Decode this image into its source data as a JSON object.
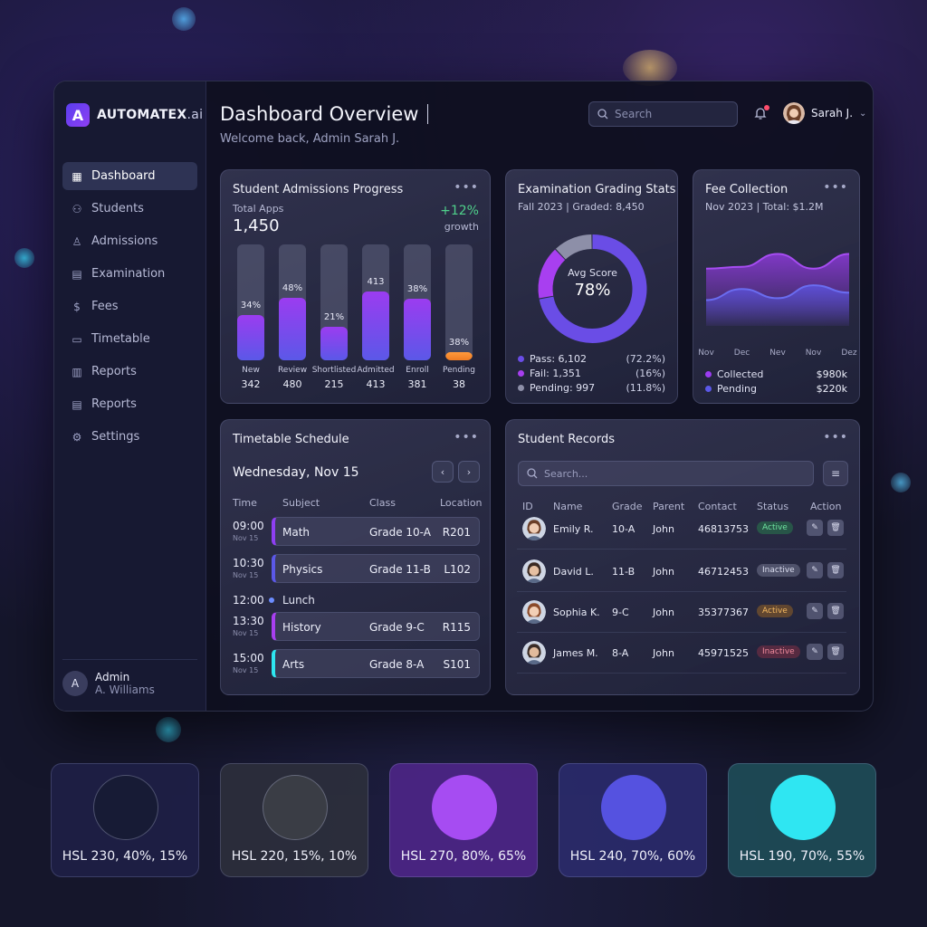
{
  "brand": {
    "name": "AUTOMATEX",
    "suffix": ".ai",
    "logo_letter": "A"
  },
  "sidebar": {
    "items": [
      {
        "label": "Dashboard",
        "icon": "grid-icon",
        "active": true
      },
      {
        "label": "Students",
        "icon": "users-icon"
      },
      {
        "label": "Admissions",
        "icon": "user-plus-icon"
      },
      {
        "label": "Examination",
        "icon": "document-icon"
      },
      {
        "label": "Fees",
        "icon": "dollar-icon"
      },
      {
        "label": "Timetable",
        "icon": "calendar-icon"
      },
      {
        "label": "Reports",
        "icon": "bar-chart-icon"
      },
      {
        "label": "Reports",
        "icon": "report-icon"
      },
      {
        "label": "Settings",
        "icon": "gear-icon"
      }
    ],
    "admin": {
      "initial": "A",
      "name": "Admin",
      "sub": "A. Williams"
    }
  },
  "header": {
    "title": "Dashboard Overview",
    "subtitle": "Welcome back, Admin Sarah J.",
    "search_placeholder": "Search",
    "user_name": "Sarah J."
  },
  "admissions": {
    "title": "Student Admissions Progress",
    "total_label": "Total Apps",
    "total": "1,450",
    "growth": "+12%",
    "growth_label": "growth"
  },
  "exam": {
    "title": "Examination Grading Stats",
    "subtitle": "Fall 2023 | Graded: 8,450",
    "center_label": "Avg Score",
    "center_value": "78%",
    "legend": [
      {
        "label": "Pass: 6,102",
        "pct": "(72.2%)",
        "color": "#6a4de6"
      },
      {
        "label": "Fail: 1,351",
        "pct": "(16%)",
        "color": "#a83ff0"
      },
      {
        "label": "Pending: 997",
        "pct": "(11.8%)",
        "color": "#8d8fa8"
      }
    ]
  },
  "fees": {
    "title": "Fee Collection",
    "subtitle": "Nov 2023 | Total: $1.2M",
    "months": [
      "Nov",
      "Dec",
      "Nev",
      "Nov",
      "Dez"
    ],
    "legend": [
      {
        "label": "Collected",
        "value": "$980k",
        "color": "#9b3cf0"
      },
      {
        "label": "Pending",
        "value": "$220k",
        "color": "#5b58e8"
      }
    ]
  },
  "timetable": {
    "title": "Timetable Schedule",
    "date": "Wednesday, Nov 15",
    "headers": [
      "Time",
      "Subject",
      "Class",
      "Location"
    ],
    "slots": [
      {
        "time": "09:00",
        "date": "Nov 15",
        "subject": "Math",
        "class": "Grade 10-A",
        "location": "R201",
        "color": "#8e3ff2"
      },
      {
        "time": "10:30",
        "date": "Nov 15",
        "subject": "Physics",
        "class": "Grade 11-B",
        "location": "L102",
        "color": "#5b58e8"
      },
      {
        "time": "13:30",
        "date": "Nov 15",
        "subject": "History",
        "class": "Grade 9-C",
        "location": "R115",
        "color": "#a83ff0"
      },
      {
        "time": "15:00",
        "date": "Nov 15",
        "subject": "Arts",
        "class": "Grade 8-A",
        "location": "S101",
        "color": "#2ee6f0"
      }
    ],
    "lunch": {
      "time": "12:00",
      "label": "Lunch"
    }
  },
  "records": {
    "title": "Student Records",
    "search_placeholder": "Search...",
    "headers": [
      "ID",
      "Name",
      "Grade",
      "Parent",
      "Contact",
      "Status",
      "Action"
    ],
    "rows": [
      {
        "name": "Emily R.",
        "grade": "10-A",
        "parent": "John",
        "contact": "46813753",
        "status": "Active",
        "status_type": "active-green"
      },
      {
        "name": "David L.",
        "grade": "11-B",
        "parent": "John",
        "contact": "46712453",
        "status": "Inactive",
        "status_type": "inactive-grey"
      },
      {
        "name": "Sophia K.",
        "grade": "9-C",
        "parent": "John",
        "contact": "35377367",
        "status": "Active",
        "status_type": "active-orange"
      },
      {
        "name": "James M.",
        "grade": "8-A",
        "parent": "John",
        "contact": "45971525",
        "status": "Inactive",
        "status_type": "inactive-red"
      }
    ]
  },
  "swatches": [
    {
      "label": "HSL 230, 40%, 15%",
      "color": "#171b35"
    },
    {
      "label": "HSL 220, 15%, 10%",
      "color": "#3a3d45"
    },
    {
      "label": "HSL 270, 80%, 65%",
      "color": "#a64cf2"
    },
    {
      "label": "HSL 240, 70%, 60%",
      "color": "#5552e0"
    },
    {
      "label": "HSL 190, 70%, 55%",
      "color": "#2fe6f2"
    }
  ],
  "chart_data": [
    {
      "type": "bar",
      "categories": [
        "New",
        "Review",
        "Shortlisted",
        "Admitted",
        "Enroll",
        "Pending"
      ],
      "values": [
        342,
        480,
        215,
        413,
        381,
        38
      ],
      "percent_labels": [
        "34%",
        "48%",
        "21%",
        "413",
        "38%",
        "38%"
      ],
      "fill_fraction": [
        0.39,
        0.54,
        0.29,
        0.59,
        0.53,
        0.07
      ]
    },
    {
      "type": "pie",
      "slices": [
        {
          "label": "Pass",
          "value": 72.2
        },
        {
          "label": "Fail",
          "value": 16
        },
        {
          "label": "Pending",
          "value": 11.8
        }
      ]
    },
    {
      "type": "area",
      "categories": [
        "Nov",
        "Dec",
        "Nev",
        "Nov",
        "Dez"
      ],
      "series": [
        {
          "name": "Collected",
          "values": [
            62,
            64,
            78,
            62,
            78
          ]
        },
        {
          "name": "Pending",
          "values": [
            28,
            40,
            30,
            44,
            36
          ]
        }
      ],
      "ylim": [
        0,
        100
      ]
    }
  ]
}
